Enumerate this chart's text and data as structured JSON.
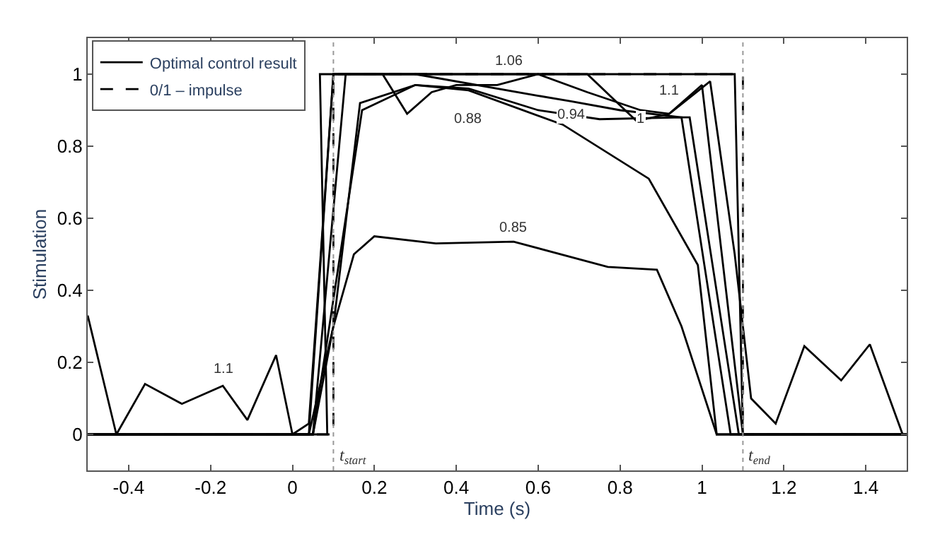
{
  "chart_data": {
    "type": "line",
    "xlabel": "Time (s)",
    "ylabel": "Stimulation",
    "xlim": [
      -0.5,
      1.5
    ],
    "ylim": [
      -0.1,
      1.1
    ],
    "xticks": [
      -0.4,
      -0.2,
      0,
      0.2,
      0.4,
      0.6,
      0.8,
      1,
      1.2,
      1.4
    ],
    "yticks": [
      0,
      0.2,
      0.4,
      0.6,
      0.8,
      1
    ],
    "legend": "top left",
    "marker": "none",
    "series": [
      {
        "name": "Optimal control result",
        "color": "#000000",
        "line_style": "solid",
        "x": [
          -0.5,
          0.085,
          0.067,
          0.53,
          1.08,
          1.1,
          1.5
        ],
        "values": [
          0,
          0,
          1,
          1,
          1,
          0,
          0
        ]
      },
      {
        "color": "#000000",
        "line_style": "solid",
        "x": [
          -0.5,
          -0.43,
          -0.36,
          -0.27,
          -0.17,
          -0.11,
          -0.04,
          0,
          0.04,
          0.1,
          0.22,
          0.28,
          0.34,
          0.4,
          0.5,
          0.6,
          0.72,
          0.84,
          0.92,
          1.02,
          1.08,
          1.12,
          1.18,
          1.25,
          1.34,
          1.41,
          1.49,
          1.5
        ],
        "values": [
          0.33,
          0,
          0.14,
          0.085,
          0.135,
          0.04,
          0.22,
          0,
          0.03,
          1,
          1,
          0.89,
          0.95,
          0.97,
          0.97,
          1,
          1,
          0.87,
          0.89,
          0.98,
          0.5,
          0.1,
          0.03,
          0.245,
          0.15,
          0.25,
          0,
          0
        ]
      },
      {
        "color": "#000000",
        "line_style": "solid",
        "x": [
          -0.5,
          0.04,
          0.1,
          0.6,
          0.72,
          0.85,
          0.92,
          1.0,
          1.1,
          1.5
        ],
        "values": [
          0,
          0,
          1,
          1,
          0.95,
          0.9,
          0.89,
          0.97,
          0,
          0
        ]
      },
      {
        "color": "#000000",
        "line_style": "solid",
        "x": [
          -0.5,
          0.05,
          0.13,
          0.3,
          0.6,
          0.68,
          0.8,
          0.95,
          0.97,
          1.09,
          1.5
        ],
        "values": [
          0,
          0,
          1,
          1,
          0.94,
          0.925,
          0.9,
          0.88,
          0.88,
          0,
          0
        ]
      },
      {
        "color": "#000000",
        "line_style": "solid",
        "x": [
          -0.5,
          0.05,
          0.17,
          0.3,
          0.43,
          0.6,
          0.75,
          0.95,
          1.07,
          1.5
        ],
        "values": [
          0,
          0,
          0.9,
          0.97,
          0.96,
          0.9,
          0.875,
          0.88,
          0,
          0
        ]
      },
      {
        "color": "#000000",
        "line_style": "solid",
        "x": [
          -0.5,
          0.05,
          0.1,
          0.165,
          0.3,
          0.43,
          0.66,
          0.87,
          0.99,
          1.036,
          1.5
        ],
        "values": [
          0,
          0,
          0.3,
          0.92,
          0.97,
          0.955,
          0.86,
          0.71,
          0.47,
          0,
          0
        ]
      },
      {
        "color": "#000000",
        "line_style": "solid",
        "x": [
          -0.5,
          0.04,
          0.1,
          0.15,
          0.2,
          0.35,
          0.54,
          0.77,
          0.89,
          0.95,
          1.036,
          1.5
        ],
        "values": [
          0,
          0,
          0.3,
          0.5,
          0.55,
          0.53,
          0.535,
          0.465,
          0.457,
          0.3,
          0,
          0
        ]
      },
      {
        "name": "0/1 – impulse",
        "color": "#000000",
        "line_style": "dashed",
        "x": [
          -0.5,
          0.1,
          0.1,
          1.1,
          1.1,
          1.5
        ],
        "values": [
          0,
          0,
          1,
          1,
          0,
          0
        ]
      }
    ],
    "ref_lines": [
      {
        "axis": "x",
        "value": 0.1,
        "label": "t$_{start}$",
        "color": "#999999",
        "line_style": "dotted"
      },
      {
        "axis": "x",
        "value": 1.1,
        "label": "t$_{end}$",
        "color": "#999999",
        "line_style": "dotted"
      }
    ],
    "annotations": [
      {
        "text": "1.06",
        "x": 0.53,
        "y": 1
      },
      {
        "text": "0.94",
        "x": 0.68,
        "y": 0.925
      },
      {
        "text": "1.1",
        "x": 0.92,
        "y": 0.89
      },
      {
        "text": "1",
        "x": 0.85,
        "y": 0.9
      },
      {
        "text": "0.88",
        "x": 0.43,
        "y": 0.96
      },
      {
        "text": "0.85",
        "x": 0.54,
        "y": 0.535
      },
      {
        "text": "1.1",
        "x": -0.17,
        "y": 0.135
      }
    ]
  }
}
